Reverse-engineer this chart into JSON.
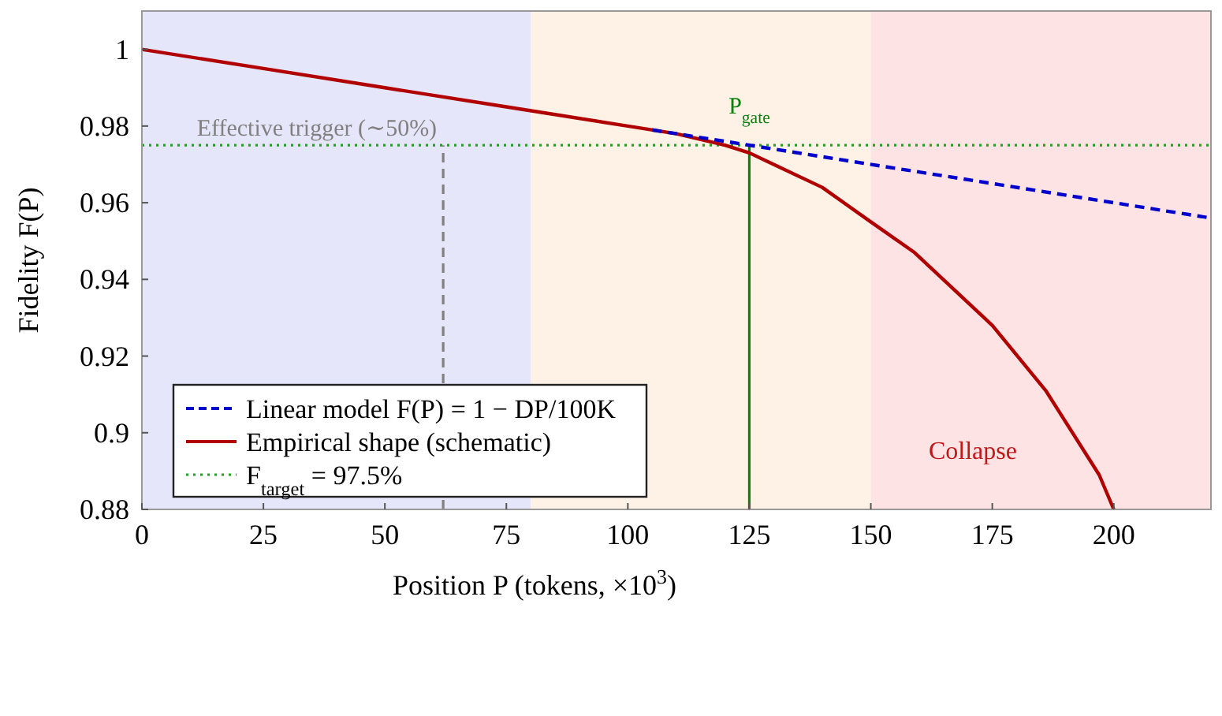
{
  "chart_data": {
    "type": "line",
    "xlabel": "Position P (tokens, ×10$^{3}$)",
    "ylabel": "Fidelity F(P)",
    "xlim": [
      0,
      220
    ],
    "ylim": [
      0.88,
      1.01
    ],
    "xticks": [
      0,
      25,
      50,
      75,
      100,
      125,
      150,
      175,
      200
    ],
    "yticks": [
      0.88,
      0.9,
      0.92,
      0.94,
      0.96,
      0.98,
      1
    ],
    "series": [
      {
        "name": "Linear model F(P) = 1 − DP/100K",
        "color": "#0000cc",
        "line_style": "dashed",
        "x": [
          105,
          220
        ],
        "values": [
          0.979,
          0.956
        ]
      },
      {
        "name": "Empirical shape (schematic)",
        "color": "#b00000",
        "line_style": "solid",
        "x": [
          0,
          25,
          50,
          75,
          100,
          110,
          120,
          125,
          130,
          140,
          150,
          159,
          175,
          186,
          197,
          200
        ],
        "values": [
          1,
          0.995,
          0.99,
          0.985,
          0.98,
          0.978,
          0.975,
          0.973,
          0.97,
          0.964,
          0.955,
          0.947,
          0.928,
          0.911,
          0.889,
          0.88
        ]
      }
    ],
    "ref_lines": [
      {
        "axis": "y",
        "value": 0.975,
        "label": "F$_{target}$ = 97.5%",
        "color": "#22a022",
        "line_style": "dotted"
      },
      {
        "axis": "x",
        "value": 62,
        "label": "Effective trigger (∼50%)",
        "color": "#808080",
        "line_style": "dashed"
      },
      {
        "axis": "x",
        "value": 125,
        "label": "P$_{gate}$",
        "color": "#108010",
        "line_style": "solid"
      }
    ],
    "bands": [
      {
        "axis": "x",
        "from": 0,
        "to": 80,
        "color": "#e6e6fa"
      },
      {
        "axis": "x",
        "from": 80,
        "to": 150,
        "color": "#fef1e5"
      },
      {
        "axis": "x",
        "from": 150,
        "to": 220,
        "label": "Collapse",
        "color": "#fde3e4"
      }
    ],
    "legend": "bottom left",
    "grid": false
  }
}
